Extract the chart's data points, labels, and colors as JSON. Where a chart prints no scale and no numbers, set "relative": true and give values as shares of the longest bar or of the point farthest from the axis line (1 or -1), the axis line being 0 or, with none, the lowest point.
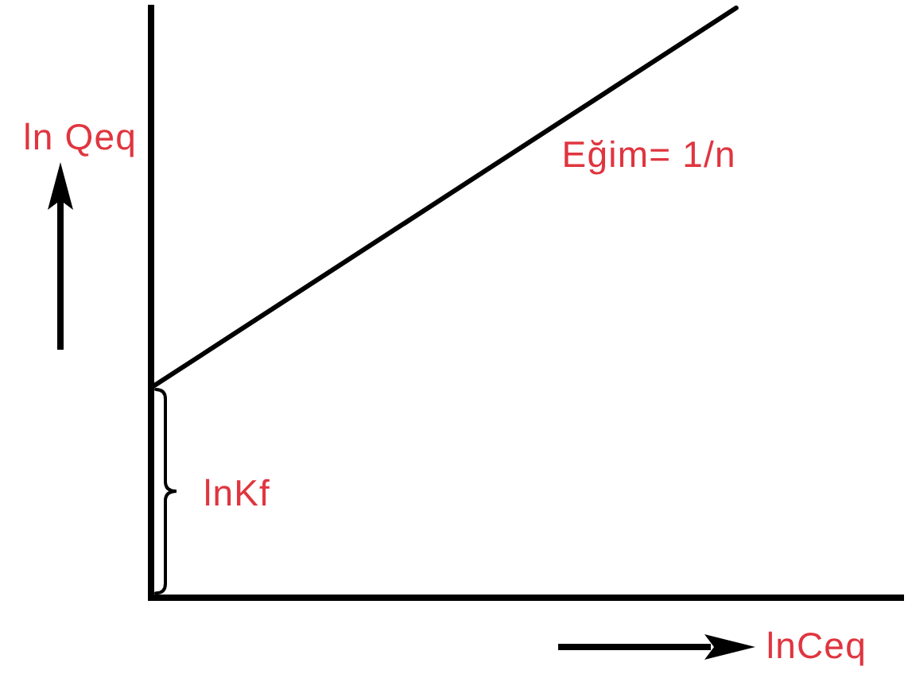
{
  "chart_data": {
    "type": "line",
    "xlabel": "lnCeq",
    "ylabel": "ln Qeq",
    "annotations": [
      "Eğim= 1/n",
      "lnKf"
    ],
    "categories": [
      null,
      null,
      null,
      null,
      null,
      null,
      null,
      null,
      null,
      null
    ],
    "series": [
      {
        "color": "#000000",
        "values": [
          0.356,
          0.448,
          0.54,
          0.632,
          0.724,
          0.816,
          0.908,
          1,
          null,
          null
        ]
      }
    ],
    "relative": true,
    "tick_labels": false,
    "marker": "none"
  }
}
